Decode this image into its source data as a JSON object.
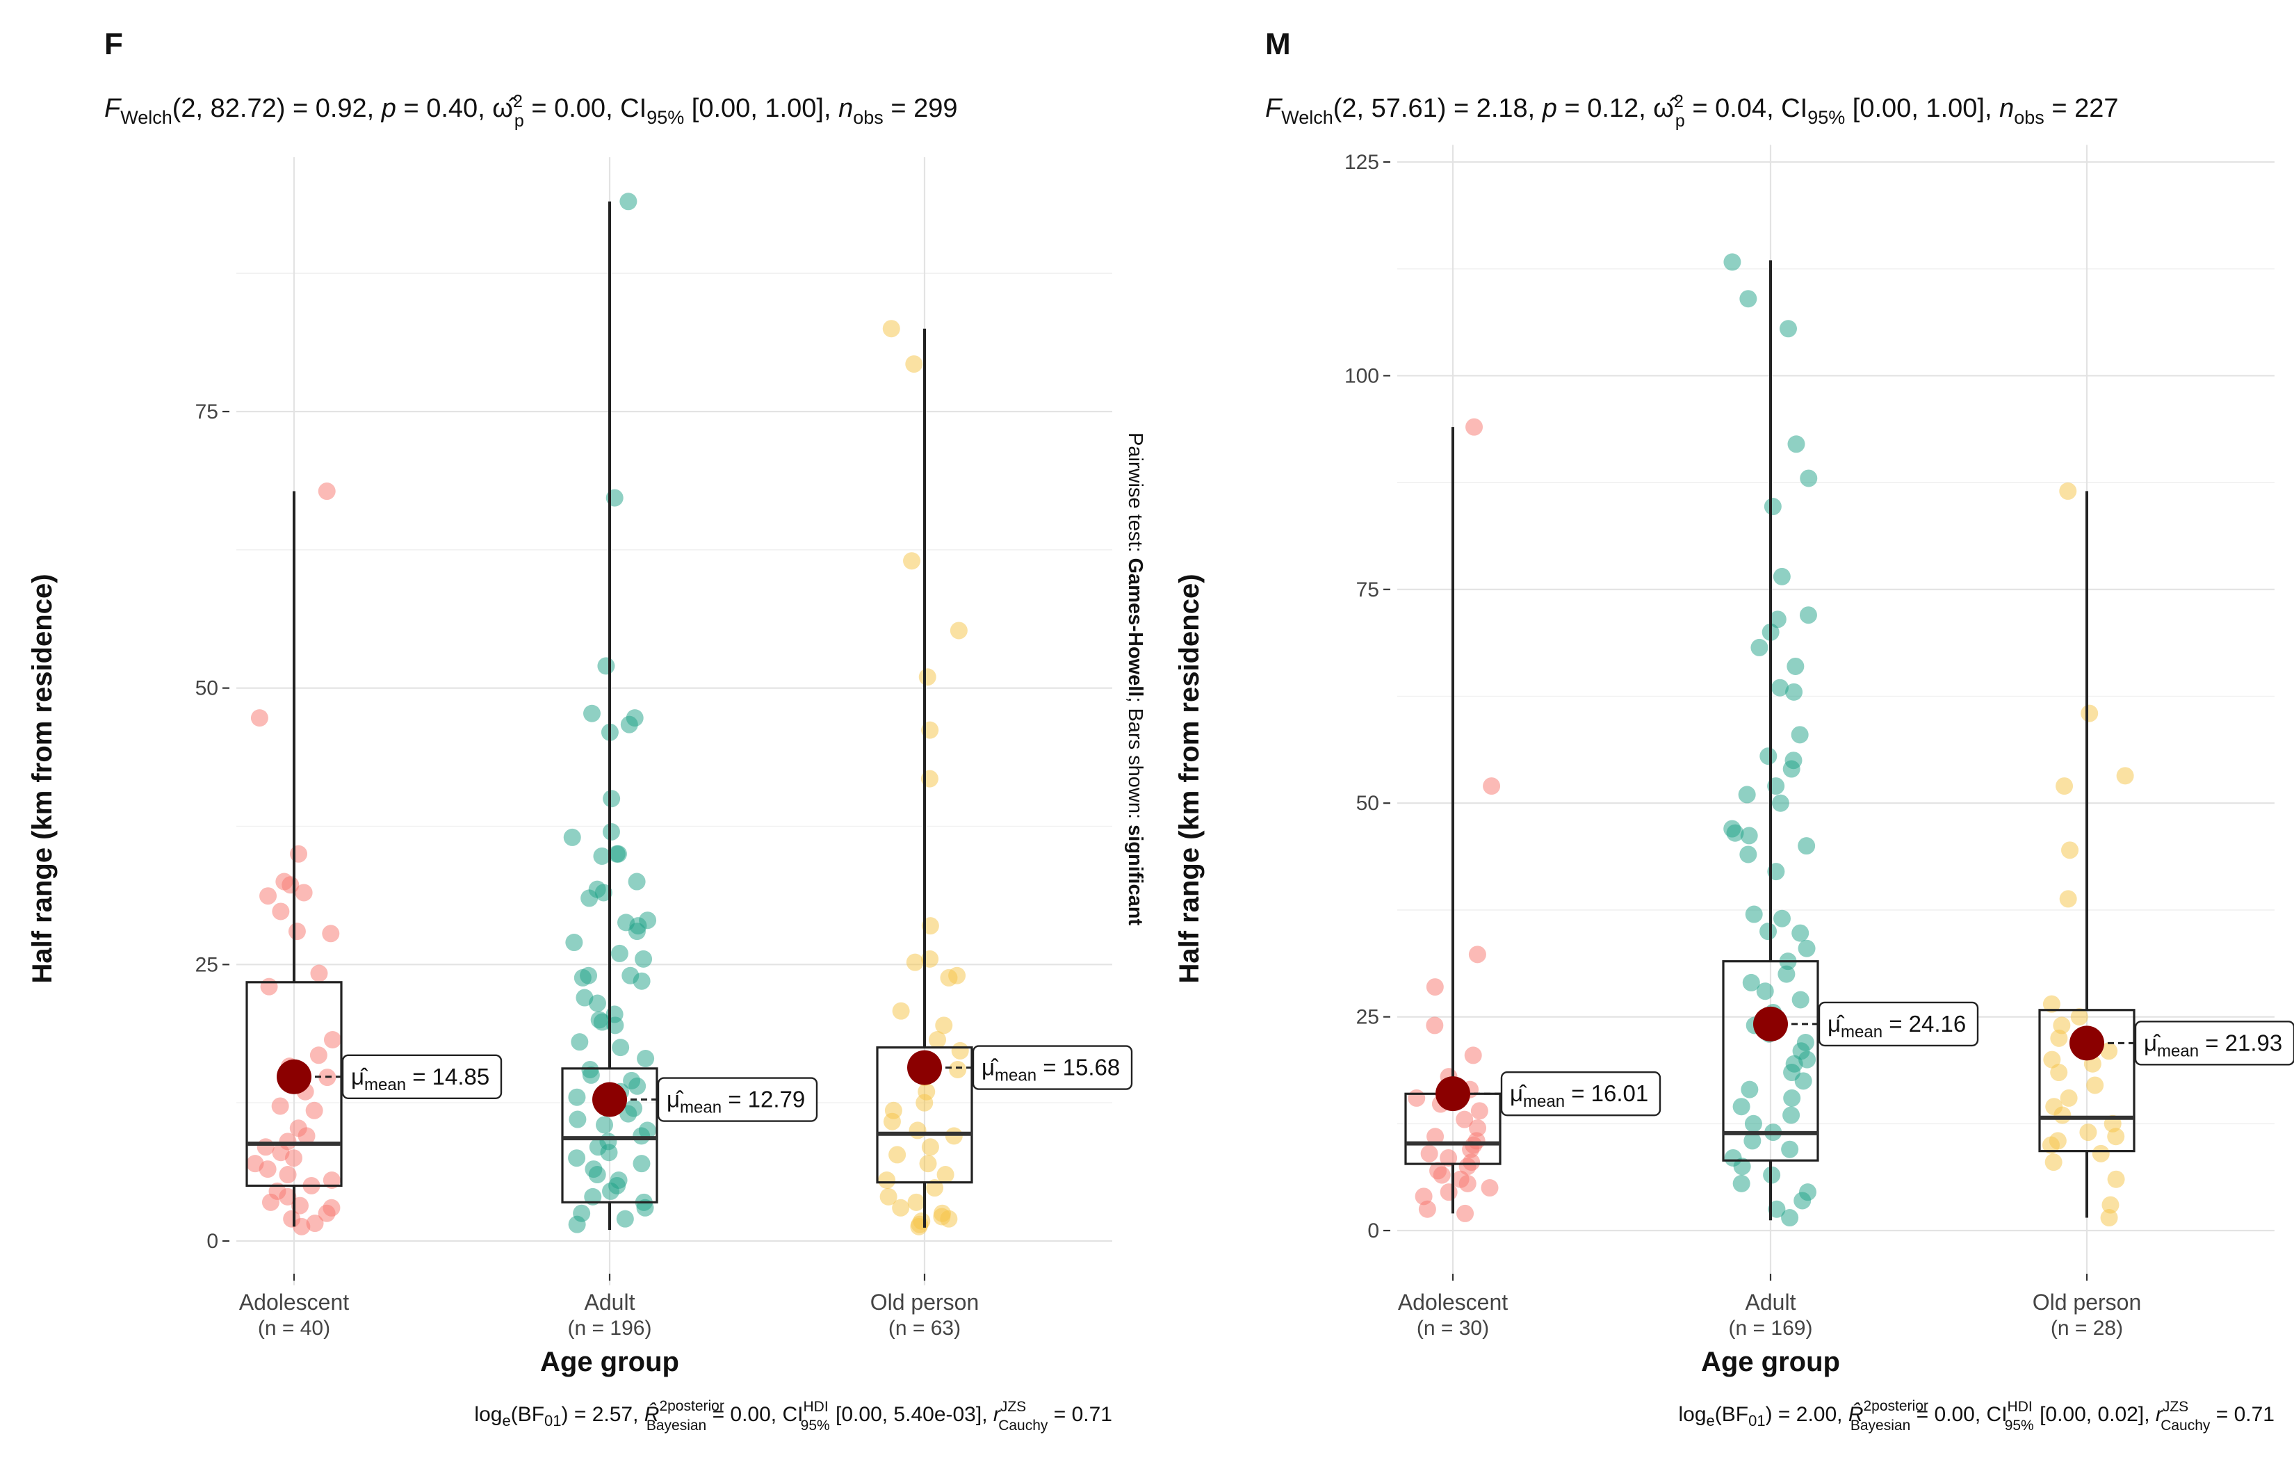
{
  "chart_data": [
    {
      "type": "box",
      "panel_label": "F",
      "subtitle_text": "F_Welch(2, 82.72) = 0.92, p = 0.40, ω̂²p = 0.00, CI95% [0.00, 1.00], n_obs = 299",
      "subtitle_parts": {
        "f_stat": "(2, 82.72) = 0.92,",
        "p": "= 0.40,",
        "omega": "= 0.00,",
        "ci": "[0.00, 1.00],",
        "nobs": "= 299"
      },
      "xlabel": "Age group",
      "ylabel": "Half range (km from residence)",
      "ylim": [
        -4,
        98
      ],
      "yticks": [
        0,
        25,
        50,
        75
      ],
      "grid": true,
      "legend": "none",
      "categories": [
        "Adolescent",
        "Adult",
        "Old person"
      ],
      "n_labels": [
        "(n = 40)",
        "(n = 196)",
        "(n = 63)"
      ],
      "colors": [
        "#F8766D",
        "#1FA187",
        "#F6C445"
      ],
      "boxes": [
        {
          "min": 1.3,
          "q1": 5.0,
          "median": 8.8,
          "q3": 23.4,
          "max": 67.8,
          "mean": 14.85,
          "mean_label": "= 14.85"
        },
        {
          "min": 1.0,
          "q1": 3.5,
          "median": 9.3,
          "q3": 15.6,
          "max": 94.0,
          "mean": 12.79,
          "mean_label": "= 12.79"
        },
        {
          "min": 1.2,
          "q1": 5.3,
          "median": 9.7,
          "q3": 17.5,
          "max": 82.5,
          "mean": 15.68,
          "mean_label": "= 15.68"
        }
      ],
      "points": [
        [
          67.8,
          47.3,
          35.0,
          32.5,
          32.2,
          31.5,
          31.2,
          29.8,
          28.0,
          27.8,
          24.2,
          23.0,
          18.2,
          16.8,
          15.8,
          14.8,
          14.5,
          13.5,
          12.2,
          11.8,
          10.2,
          9.5,
          9.0,
          8.5,
          8.0,
          7.5,
          7.0,
          6.5,
          6.0,
          5.5,
          5.0,
          4.5,
          4.0,
          3.5,
          3.2,
          3.0,
          2.5,
          2.0,
          1.6,
          1.3
        ],
        [
          94.0,
          67.2,
          52.0,
          47.7,
          47.3,
          46.7,
          46.0,
          40.0,
          37.0,
          36.5,
          35.0,
          35.0,
          34.8,
          32.5,
          31.8,
          31.5,
          31.0,
          29.0,
          28.8,
          28.5,
          28.0,
          27.0,
          26.0,
          25.5,
          24.0,
          24.0,
          23.8,
          23.5,
          22.0,
          21.5,
          20.5,
          20.0,
          19.8,
          19.5,
          18.0,
          17.5,
          16.5,
          15.5,
          15.0,
          14.5,
          14.0,
          13.5,
          13.0,
          12.5,
          12.0,
          11.5,
          11.0,
          10.5,
          10.0,
          9.5,
          9.0,
          8.5,
          8.0,
          7.5,
          7.0,
          6.5,
          6.0,
          5.5,
          5.0,
          4.5,
          4.0,
          3.5,
          3.0,
          2.5,
          2.0,
          1.5
        ],
        [
          82.5,
          79.3,
          61.5,
          55.2,
          51.0,
          46.2,
          41.8,
          28.5,
          25.5,
          25.2,
          24.0,
          23.8,
          20.8,
          19.5,
          18.2,
          17.2,
          16.0,
          15.5,
          14.8,
          13.5,
          12.5,
          11.8,
          10.8,
          10.0,
          9.5,
          8.5,
          7.8,
          7.0,
          6.0,
          5.5,
          4.8,
          4.0,
          3.5,
          3.0,
          2.5,
          2.2,
          2.0,
          1.8,
          1.5,
          1.3
        ]
      ],
      "bf_parts": {
        "loge": "= 2.57,",
        "r2": "= 0.00,",
        "ci": "[0.00, 5.40e-03],",
        "cauchy": "= 0.71"
      },
      "side_note": {
        "prefix": "Pairwise test: ",
        "test": "Games-Howell",
        "middle": "; Bars shown: ",
        "shown": "significant"
      }
    },
    {
      "type": "box",
      "panel_label": "M",
      "subtitle_text": "F_Welch(2, 57.61) = 2.18, p = 0.12, ω̂²p = 0.04, CI95% [0.00, 1.00], n_obs = 227",
      "subtitle_parts": {
        "f_stat": "(2, 57.61) = 2.18,",
        "p": "= 0.12,",
        "omega": "= 0.04,",
        "ci": "[0.00, 1.00],",
        "nobs": "= 227"
      },
      "xlabel": "Age group",
      "ylabel": "Half range (km from residence)",
      "ylim": [
        -5,
        127
      ],
      "yticks": [
        0,
        25,
        50,
        75,
        100,
        125
      ],
      "grid": true,
      "legend": "none",
      "categories": [
        "Adolescent",
        "Adult",
        "Old person"
      ],
      "n_labels": [
        "(n = 30)",
        "(n = 169)",
        "(n = 28)"
      ],
      "colors": [
        "#F8766D",
        "#1FA187",
        "#F6C445"
      ],
      "boxes": [
        {
          "min": 2.0,
          "q1": 7.8,
          "median": 10.2,
          "q3": 16.0,
          "max": 94.0,
          "mean": 16.01,
          "mean_label": "= 16.01"
        },
        {
          "min": 1.2,
          "q1": 8.2,
          "median": 11.4,
          "q3": 31.5,
          "max": 113.5,
          "mean": 24.16,
          "mean_label": "= 24.16"
        },
        {
          "min": 1.5,
          "q1": 9.3,
          "median": 13.2,
          "q3": 25.8,
          "max": 86.5,
          "mean": 21.93,
          "mean_label": "= 21.93"
        }
      ],
      "points": [
        [
          94.0,
          52.0,
          32.3,
          28.5,
          24.0,
          20.5,
          18.0,
          16.5,
          15.5,
          14.8,
          14.0,
          13.0,
          12.0,
          11.0,
          10.5,
          10.0,
          9.5,
          9.0,
          8.5,
          8.0,
          7.5,
          7.0,
          6.5,
          6.0,
          5.5,
          5.0,
          4.5,
          4.0,
          2.5,
          2.0
        ],
        [
          113.3,
          109.0,
          105.5,
          92.0,
          88.0,
          84.7,
          76.5,
          72.0,
          71.5,
          70.0,
          68.2,
          66.0,
          63.5,
          63.0,
          58.0,
          55.5,
          55.0,
          54.0,
          52.0,
          51.0,
          50.0,
          47.0,
          46.5,
          46.2,
          45.0,
          44.0,
          42.0,
          37.0,
          36.5,
          35.0,
          34.8,
          33.0,
          31.5,
          30.0,
          29.0,
          28.0,
          27.0,
          25.5,
          24.0,
          23.0,
          22.0,
          21.0,
          20.0,
          19.5,
          18.5,
          17.5,
          16.5,
          15.5,
          14.5,
          13.5,
          12.5,
          11.5,
          10.5,
          9.5,
          8.5,
          7.5,
          6.5,
          5.5,
          4.5,
          3.5,
          2.5,
          1.5
        ],
        [
          86.5,
          60.5,
          53.2,
          52.0,
          44.5,
          38.8,
          26.5,
          25.0,
          24.0,
          22.5,
          21.0,
          20.0,
          19.5,
          18.5,
          17.0,
          15.5,
          14.5,
          13.5,
          12.5,
          11.5,
          11.0,
          10.5,
          10.0,
          9.0,
          8.0,
          6.0,
          3.0,
          1.5
        ]
      ],
      "bf_parts": {
        "loge": "= 2.00,",
        "r2": "= 0.00,",
        "ci": "[0.00, 0.02],",
        "cauchy": "= 0.71"
      }
    }
  ]
}
